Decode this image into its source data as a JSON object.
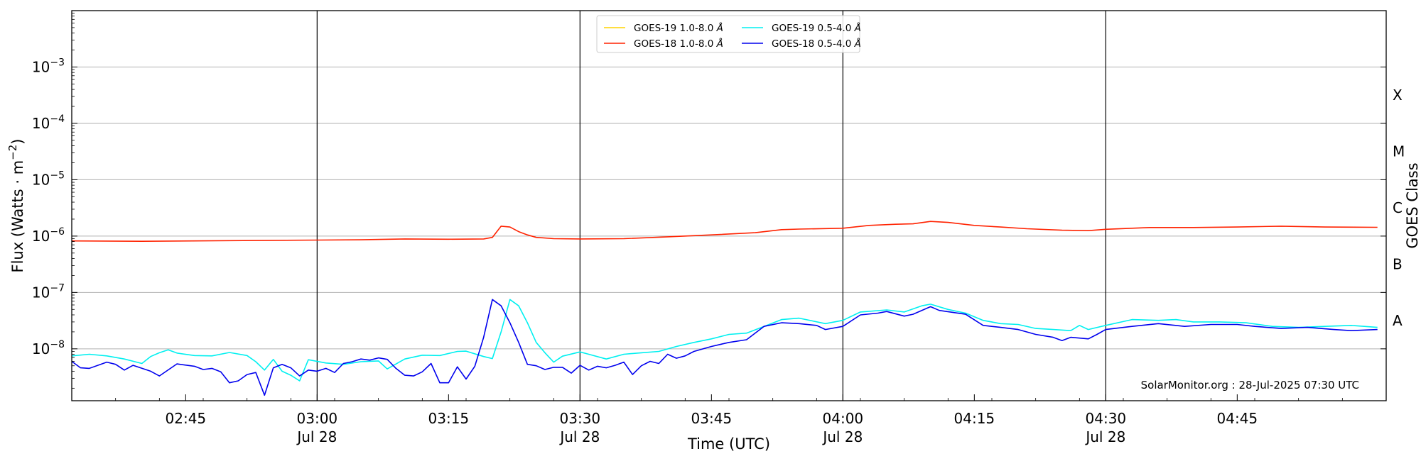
{
  "chart_data": {
    "type": "line",
    "xlabel": "Time (UTC)",
    "ylabel": "Flux (Watts · m⁻²)",
    "ylabel_parts": {
      "main": "Flux (Watts · m",
      "sup": "−2",
      "end": ")"
    },
    "y2label": "GOES Class",
    "yscale": "log",
    "xlim": [
      "02:32",
      "05:02"
    ],
    "ylim": [
      1.2e-09,
      0.01
    ],
    "grid": "horizontal at each decade",
    "legend_position": "top-center",
    "credit": "SolarMonitor.org : 28-Jul-2025 07:30 UTC",
    "x_ticks": [
      {
        "time": "02:45",
        "label": "02:45",
        "sublabel": ""
      },
      {
        "time": "03:00",
        "label": "03:00",
        "sublabel": "Jul 28"
      },
      {
        "time": "03:15",
        "label": "03:15",
        "sublabel": ""
      },
      {
        "time": "03:30",
        "label": "03:30",
        "sublabel": "Jul 28"
      },
      {
        "time": "03:45",
        "label": "03:45",
        "sublabel": ""
      },
      {
        "time": "04:00",
        "label": "04:00",
        "sublabel": "Jul 28"
      },
      {
        "time": "04:15",
        "label": "04:15",
        "sublabel": ""
      },
      {
        "time": "04:30",
        "label": "04:30",
        "sublabel": "Jul 28"
      },
      {
        "time": "04:45",
        "label": "04:45",
        "sublabel": ""
      }
    ],
    "y_ticks": [
      {
        "value": 1e-08,
        "base": "10",
        "exp": "−8"
      },
      {
        "value": 1e-07,
        "base": "10",
        "exp": "−7"
      },
      {
        "value": 1e-06,
        "base": "10",
        "exp": "−6"
      },
      {
        "value": 1e-05,
        "base": "10",
        "exp": "−5"
      },
      {
        "value": 0.0001,
        "base": "10",
        "exp": "−4"
      },
      {
        "value": 0.001,
        "base": "10",
        "exp": "−3"
      }
    ],
    "vertical_markers": [
      "03:00",
      "03:30",
      "04:00",
      "04:30"
    ],
    "goes_classes": [
      {
        "label": "A",
        "value": 3.16e-08
      },
      {
        "label": "B",
        "value": 3.16e-07
      },
      {
        "label": "C",
        "value": 3.16e-06
      },
      {
        "label": "M",
        "value": 3.16e-05
      },
      {
        "label": "X",
        "value": 0.000316
      }
    ],
    "series": [
      {
        "name": "GOES-19 1.0-8.0",
        "name_suffix": "Å",
        "color": "#ffd400",
        "points": []
      },
      {
        "name": "GOES-18 1.0-8.0",
        "name_suffix": "Å",
        "color": "#ff2200",
        "points": [
          [
            "02:32",
            8.2e-07
          ],
          [
            "02:40",
            8.1e-07
          ],
          [
            "02:50",
            8.3e-07
          ],
          [
            "03:00",
            8.5e-07
          ],
          [
            "03:05",
            8.6e-07
          ],
          [
            "03:10",
            8.9e-07
          ],
          [
            "03:15",
            8.8e-07
          ],
          [
            "03:19",
            8.9e-07
          ],
          [
            "03:20",
            9.5e-07
          ],
          [
            "03:21",
            1.5e-06
          ],
          [
            "03:22",
            1.45e-06
          ],
          [
            "03:23",
            1.2e-06
          ],
          [
            "03:24",
            1.05e-06
          ],
          [
            "03:25",
            9.5e-07
          ],
          [
            "03:27",
            9e-07
          ],
          [
            "03:30",
            8.9e-07
          ],
          [
            "03:35",
            9e-07
          ],
          [
            "03:40",
            9.7e-07
          ],
          [
            "03:45",
            1.05e-06
          ],
          [
            "03:50",
            1.15e-06
          ],
          [
            "03:53",
            1.3e-06
          ],
          [
            "03:55",
            1.33e-06
          ],
          [
            "04:00",
            1.38e-06
          ],
          [
            "04:03",
            1.55e-06
          ],
          [
            "04:06",
            1.62e-06
          ],
          [
            "04:08",
            1.65e-06
          ],
          [
            "04:10",
            1.82e-06
          ],
          [
            "04:12",
            1.75e-06
          ],
          [
            "04:15",
            1.55e-06
          ],
          [
            "04:18",
            1.45e-06
          ],
          [
            "04:21",
            1.35e-06
          ],
          [
            "04:25",
            1.27e-06
          ],
          [
            "04:28",
            1.25e-06
          ],
          [
            "04:30",
            1.32e-06
          ],
          [
            "04:35",
            1.42e-06
          ],
          [
            "04:40",
            1.42e-06
          ],
          [
            "04:45",
            1.45e-06
          ],
          [
            "04:50",
            1.5e-06
          ],
          [
            "04:55",
            1.45e-06
          ],
          [
            "05:01",
            1.43e-06
          ]
        ]
      },
      {
        "name": "GOES-19 0.5-4.0",
        "name_suffix": "Å",
        "color": "#00f0f0",
        "points": [
          [
            "02:32",
            7.5e-09
          ],
          [
            "02:34",
            8e-09
          ],
          [
            "02:36",
            7.5e-09
          ],
          [
            "02:38",
            6.6e-09
          ],
          [
            "02:40",
            5.5e-09
          ],
          [
            "02:41",
            7.3e-09
          ],
          [
            "02:42",
            8.5e-09
          ],
          [
            "02:43",
            9.6e-09
          ],
          [
            "02:44",
            8.4e-09
          ],
          [
            "02:46",
            7.6e-09
          ],
          [
            "02:48",
            7.5e-09
          ],
          [
            "02:50",
            8.6e-09
          ],
          [
            "02:52",
            7.6e-09
          ],
          [
            "02:53",
            5.9e-09
          ],
          [
            "02:54",
            4.2e-09
          ],
          [
            "02:55",
            6.5e-09
          ],
          [
            "02:56",
            4e-09
          ],
          [
            "02:57",
            3.4e-09
          ],
          [
            "02:58",
            2.7e-09
          ],
          [
            "02:59",
            6.4e-09
          ],
          [
            "03:01",
            5.6e-09
          ],
          [
            "03:03",
            5.3e-09
          ],
          [
            "03:05",
            5.9e-09
          ],
          [
            "03:07",
            6.1e-09
          ],
          [
            "03:08",
            4.4e-09
          ],
          [
            "03:10",
            6.6e-09
          ],
          [
            "03:12",
            7.7e-09
          ],
          [
            "03:14",
            7.6e-09
          ],
          [
            "03:16",
            9e-09
          ],
          [
            "03:17",
            9.1e-09
          ],
          [
            "03:19",
            7.3e-09
          ],
          [
            "03:20",
            6.7e-09
          ],
          [
            "03:21",
            2e-08
          ],
          [
            "03:22",
            7.5e-08
          ],
          [
            "03:23",
            5.8e-08
          ],
          [
            "03:24",
            2.9e-08
          ],
          [
            "03:25",
            1.3e-08
          ],
          [
            "03:26",
            8.5e-09
          ],
          [
            "03:27",
            5.8e-09
          ],
          [
            "03:28",
            7.4e-09
          ],
          [
            "03:30",
            8.8e-09
          ],
          [
            "03:31",
            8e-09
          ],
          [
            "03:33",
            6.6e-09
          ],
          [
            "03:35",
            8e-09
          ],
          [
            "03:37",
            8.5e-09
          ],
          [
            "03:39",
            9e-09
          ],
          [
            "03:41",
            1.1e-08
          ],
          [
            "03:43",
            1.3e-08
          ],
          [
            "03:45",
            1.5e-08
          ],
          [
            "03:47",
            1.8e-08
          ],
          [
            "03:49",
            1.9e-08
          ],
          [
            "03:51",
            2.5e-08
          ],
          [
            "03:53",
            3.3e-08
          ],
          [
            "03:55",
            3.5e-08
          ],
          [
            "03:58",
            2.8e-08
          ],
          [
            "04:00",
            3.2e-08
          ],
          [
            "04:02",
            4.5e-08
          ],
          [
            "04:05",
            4.9e-08
          ],
          [
            "04:07",
            4.5e-08
          ],
          [
            "04:09",
            5.8e-08
          ],
          [
            "04:10",
            6.2e-08
          ],
          [
            "04:12",
            5e-08
          ],
          [
            "04:14",
            4.3e-08
          ],
          [
            "04:16",
            3.2e-08
          ],
          [
            "04:18",
            2.8e-08
          ],
          [
            "04:20",
            2.7e-08
          ],
          [
            "04:22",
            2.3e-08
          ],
          [
            "04:24",
            2.2e-08
          ],
          [
            "04:26",
            2.1e-08
          ],
          [
            "04:27",
            2.6e-08
          ],
          [
            "04:28",
            2.2e-08
          ],
          [
            "04:30",
            2.6e-08
          ],
          [
            "04:33",
            3.3e-08
          ],
          [
            "04:36",
            3.2e-08
          ],
          [
            "04:38",
            3.3e-08
          ],
          [
            "04:40",
            3e-08
          ],
          [
            "04:43",
            3e-08
          ],
          [
            "04:46",
            2.9e-08
          ],
          [
            "04:49",
            2.5e-08
          ],
          [
            "04:52",
            2.4e-08
          ],
          [
            "04:55",
            2.5e-08
          ],
          [
            "04:58",
            2.6e-08
          ],
          [
            "05:01",
            2.4e-08
          ]
        ]
      },
      {
        "name": "GOES-18 0.5-4.0",
        "name_suffix": "Å",
        "color": "#0000ee",
        "points": [
          [
            "02:32",
            6e-09
          ],
          [
            "02:33",
            4.6e-09
          ],
          [
            "02:34",
            4.5e-09
          ],
          [
            "02:36",
            5.8e-09
          ],
          [
            "02:37",
            5.3e-09
          ],
          [
            "02:38",
            4.2e-09
          ],
          [
            "02:39",
            5.1e-09
          ],
          [
            "02:41",
            4e-09
          ],
          [
            "02:42",
            3.3e-09
          ],
          [
            "02:44",
            5.4e-09
          ],
          [
            "02:46",
            4.9e-09
          ],
          [
            "02:47",
            4.3e-09
          ],
          [
            "02:48",
            4.5e-09
          ],
          [
            "02:49",
            3.9e-09
          ],
          [
            "02:50",
            2.5e-09
          ],
          [
            "02:51",
            2.7e-09
          ],
          [
            "02:52",
            3.5e-09
          ],
          [
            "02:53",
            3.8e-09
          ],
          [
            "02:54",
            1.5e-09
          ],
          [
            "02:55",
            4.6e-09
          ],
          [
            "02:56",
            5.3e-09
          ],
          [
            "02:57",
            4.6e-09
          ],
          [
            "02:58",
            3.3e-09
          ],
          [
            "02:59",
            4.2e-09
          ],
          [
            "03:00",
            4e-09
          ],
          [
            "03:01",
            4.5e-09
          ],
          [
            "03:02",
            3.8e-09
          ],
          [
            "03:03",
            5.5e-09
          ],
          [
            "03:04",
            5.9e-09
          ],
          [
            "03:05",
            6.6e-09
          ],
          [
            "03:06",
            6.3e-09
          ],
          [
            "03:07",
            6.9e-09
          ],
          [
            "03:08",
            6.5e-09
          ],
          [
            "03:09",
            4.5e-09
          ],
          [
            "03:10",
            3.4e-09
          ],
          [
            "03:11",
            3.3e-09
          ],
          [
            "03:12",
            3.9e-09
          ],
          [
            "03:13",
            5.5e-09
          ],
          [
            "03:14",
            2.5e-09
          ],
          [
            "03:15",
            2.5e-09
          ],
          [
            "03:16",
            4.8e-09
          ],
          [
            "03:17",
            2.9e-09
          ],
          [
            "03:18",
            4.9e-09
          ],
          [
            "03:19",
            1.6e-08
          ],
          [
            "03:20",
            7.5e-08
          ],
          [
            "03:21",
            5.8e-08
          ],
          [
            "03:22",
            2.9e-08
          ],
          [
            "03:23",
            1.3e-08
          ],
          [
            "03:24",
            5.3e-09
          ],
          [
            "03:25",
            5e-09
          ],
          [
            "03:26",
            4.3e-09
          ],
          [
            "03:27",
            4.7e-09
          ],
          [
            "03:28",
            4.7e-09
          ],
          [
            "03:29",
            3.7e-09
          ],
          [
            "03:30",
            5.1e-09
          ],
          [
            "03:31",
            4.2e-09
          ],
          [
            "03:32",
            4.9e-09
          ],
          [
            "03:33",
            4.6e-09
          ],
          [
            "03:34",
            5.1e-09
          ],
          [
            "03:35",
            5.8e-09
          ],
          [
            "03:36",
            3.5e-09
          ],
          [
            "03:37",
            5e-09
          ],
          [
            "03:38",
            6e-09
          ],
          [
            "03:39",
            5.5e-09
          ],
          [
            "03:40",
            8e-09
          ],
          [
            "03:41",
            6.8e-09
          ],
          [
            "03:42",
            7.5e-09
          ],
          [
            "03:43",
            9e-09
          ],
          [
            "03:45",
            1.1e-08
          ],
          [
            "03:47",
            1.3e-08
          ],
          [
            "03:49",
            1.45e-08
          ],
          [
            "03:51",
            2.5e-08
          ],
          [
            "03:53",
            2.9e-08
          ],
          [
            "03:55",
            2.8e-08
          ],
          [
            "03:57",
            2.6e-08
          ],
          [
            "03:58",
            2.2e-08
          ],
          [
            "04:00",
            2.5e-08
          ],
          [
            "04:02",
            4e-08
          ],
          [
            "04:04",
            4.3e-08
          ],
          [
            "04:05",
            4.6e-08
          ],
          [
            "04:07",
            3.8e-08
          ],
          [
            "04:08",
            4.1e-08
          ],
          [
            "04:10",
            5.6e-08
          ],
          [
            "04:11",
            4.8e-08
          ],
          [
            "04:14",
            4.1e-08
          ],
          [
            "04:16",
            2.6e-08
          ],
          [
            "04:18",
            2.4e-08
          ],
          [
            "04:20",
            2.2e-08
          ],
          [
            "04:22",
            1.8e-08
          ],
          [
            "04:24",
            1.6e-08
          ],
          [
            "04:25",
            1.4e-08
          ],
          [
            "04:26",
            1.6e-08
          ],
          [
            "04:28",
            1.5e-08
          ],
          [
            "04:29",
            1.8e-08
          ],
          [
            "04:30",
            2.2e-08
          ],
          [
            "04:33",
            2.5e-08
          ],
          [
            "04:36",
            2.8e-08
          ],
          [
            "04:39",
            2.5e-08
          ],
          [
            "04:42",
            2.7e-08
          ],
          [
            "04:45",
            2.7e-08
          ],
          [
            "04:47",
            2.5e-08
          ],
          [
            "04:50",
            2.3e-08
          ],
          [
            "04:53",
            2.4e-08
          ],
          [
            "04:56",
            2.2e-08
          ],
          [
            "04:58",
            2.1e-08
          ],
          [
            "05:01",
            2.2e-08
          ]
        ]
      }
    ]
  }
}
